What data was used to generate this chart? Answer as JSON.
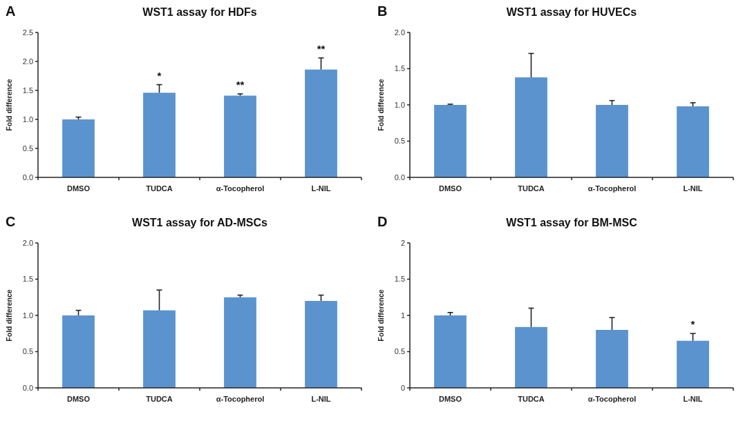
{
  "chart_data": [
    {
      "type": "bar",
      "title": "WST1 assay for HDFs",
      "ylabel": "Fold difference",
      "categories": [
        "DMSO",
        "TUDCA",
        "α-Tocopherol",
        "L-NIL"
      ],
      "values": [
        1.0,
        1.46,
        1.41,
        1.86
      ],
      "errors": [
        [
          1.0,
          1.04
        ],
        [
          1.46,
          1.6
        ],
        [
          1.41,
          1.44
        ],
        [
          1.86,
          2.06
        ]
      ],
      "color": "#5b93cf",
      "ylim": [
        0,
        2.5
      ],
      "yticks": [
        {
          "value": 0,
          "label": "0.0"
        },
        0.5,
        {
          "value": 1,
          "label": "1.0"
        },
        1.5,
        {
          "value": 2,
          "label": "2.0"
        },
        2.5
      ],
      "annotations": [
        "A",
        {
          "text": "*",
          "x": "TUDCA",
          "y": 1.6
        },
        {
          "text": "**",
          "x": "α-Tocopherol",
          "y": 1.44
        },
        {
          "text": "**",
          "x": "L-NIL",
          "y": 2.06
        }
      ]
    },
    {
      "type": "bar",
      "title": "WST1 assay for HUVECs",
      "ylabel": "Fold difference",
      "categories": [
        "DMSO",
        "TUDCA",
        "α-Tocopherol",
        "L-NIL"
      ],
      "values": [
        1.0,
        1.38,
        1.0,
        0.98
      ],
      "errors": [
        [
          1.0,
          1.01
        ],
        [
          1.38,
          1.71
        ],
        [
          1.0,
          1.06
        ],
        [
          0.98,
          1.03
        ]
      ],
      "color": "#5b93cf",
      "ylim": [
        0,
        2
      ],
      "yticks": [
        {
          "value": 0,
          "label": "0.0"
        },
        0.5,
        {
          "value": 1,
          "label": "1.0"
        },
        1.5,
        {
          "value": 2,
          "label": "2.0"
        }
      ],
      "annotations": [
        "B"
      ]
    },
    {
      "type": "bar",
      "title": "WST1 assay for AD-MSCs",
      "ylabel": "Fold difference",
      "categories": [
        "DMSO",
        "TUDCA",
        "α-Tocopherol",
        "L-NIL"
      ],
      "values": [
        1.0,
        1.07,
        1.25,
        1.2
      ],
      "errors": [
        [
          1.0,
          1.07
        ],
        [
          1.07,
          1.35
        ],
        [
          1.25,
          1.28
        ],
        [
          1.2,
          1.28
        ]
      ],
      "color": "#5b93cf",
      "ylim": [
        0,
        2
      ],
      "yticks": [
        {
          "value": 0,
          "label": "0.0"
        },
        0.5,
        {
          "value": 1,
          "label": "1.0"
        },
        1.5,
        {
          "value": 2,
          "label": "2.0"
        }
      ],
      "annotations": [
        "C"
      ]
    },
    {
      "type": "bar",
      "title": "WST1 assay for BM-MSC",
      "ylabel": "Fold difference",
      "categories": [
        "DMSO",
        "TUDCA",
        "α-Tocopherol",
        "L-NIL"
      ],
      "values": [
        1.0,
        0.84,
        0.8,
        0.65
      ],
      "errors": [
        [
          1.0,
          1.04
        ],
        [
          0.84,
          1.1
        ],
        [
          0.8,
          0.97
        ],
        [
          0.65,
          0.75
        ]
      ],
      "color": "#5b93cf",
      "ylim": [
        0,
        2
      ],
      "yticks": [
        0,
        0.5,
        1,
        1.5,
        2
      ],
      "annotations": [
        "D",
        {
          "text": "*",
          "x": "L-NIL",
          "y": 0.75
        }
      ]
    }
  ]
}
